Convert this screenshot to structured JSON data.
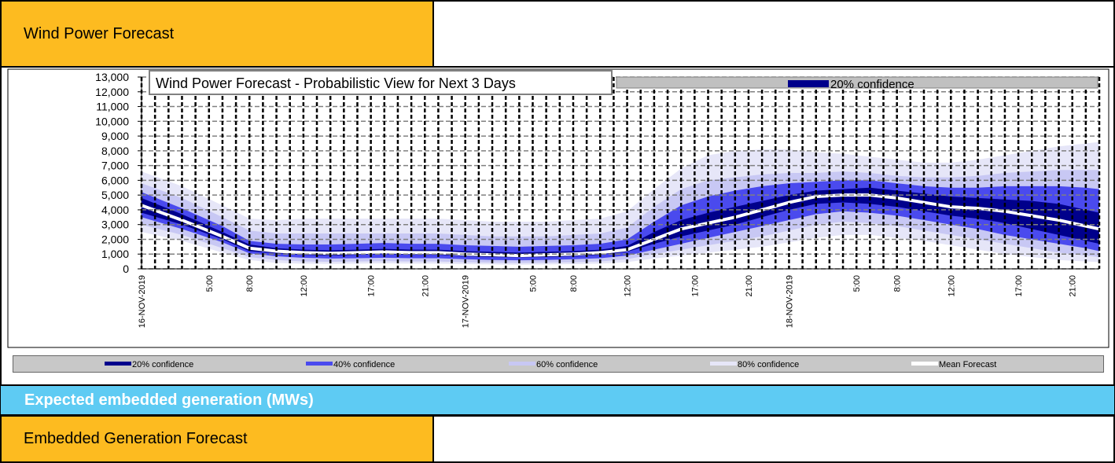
{
  "header": {
    "title": "Wind Power Forecast"
  },
  "section": {
    "title": "Expected embedded generation (MWs)"
  },
  "footer_header": {
    "title": "Embedded Generation Forecast"
  },
  "chart_data": {
    "type": "area",
    "title": "Wind Power Forecast - Probabilistic View for Next 3 Days",
    "xlabel": "",
    "ylabel": "",
    "ylim": [
      0,
      13000
    ],
    "yticks": [
      "0",
      "1,000",
      "2,000",
      "3,000",
      "4,000",
      "5,000",
      "6,000",
      "7,000",
      "8,000",
      "9,000",
      "10,000",
      "11,000",
      "12,000",
      "13,000"
    ],
    "x_tick_labels": [
      {
        "label": "16-NOV-2019",
        "hour": 0
      },
      {
        "label": "5:00",
        "hour": 5
      },
      {
        "label": "8:00",
        "hour": 8
      },
      {
        "label": "12:00",
        "hour": 12
      },
      {
        "label": "17:00",
        "hour": 17
      },
      {
        "label": "21:00",
        "hour": 21
      },
      {
        "label": "17-NOV-2019",
        "hour": 24
      },
      {
        "label": "5:00",
        "hour": 29
      },
      {
        "label": "8:00",
        "hour": 32
      },
      {
        "label": "12:00",
        "hour": 36
      },
      {
        "label": "17:00",
        "hour": 41
      },
      {
        "label": "21:00",
        "hour": 45
      },
      {
        "label": "18-NOV-2019",
        "hour": 48
      },
      {
        "label": "5:00",
        "hour": 53
      },
      {
        "label": "8:00",
        "hour": 56
      },
      {
        "label": "12:00",
        "hour": 60
      },
      {
        "label": "17:00",
        "hour": 65
      },
      {
        "label": "21:00",
        "hour": 69
      }
    ],
    "x_range_hours": [
      0,
      71
    ],
    "grid": true,
    "hours": [
      0,
      3,
      6,
      8,
      10,
      12,
      14,
      16,
      18,
      20,
      22,
      24,
      26,
      28,
      30,
      32,
      34,
      36,
      38,
      40,
      42,
      44,
      46,
      48,
      50,
      52,
      54,
      56,
      58,
      60,
      62,
      64,
      66,
      68,
      70,
      71
    ],
    "series": [
      {
        "name": "Mean Forecast",
        "color": "#ffffff",
        "values": [
          4300,
          3300,
          2200,
          1400,
          1200,
          1100,
          1050,
          1100,
          1150,
          1100,
          1100,
          1000,
          950,
          900,
          950,
          1000,
          1100,
          1300,
          2000,
          2700,
          3100,
          3500,
          4000,
          4500,
          4900,
          5000,
          5000,
          4800,
          4500,
          4200,
          4100,
          3900,
          3600,
          3300,
          2900,
          2700
        ]
      },
      {
        "name": "20% confidence",
        "color": "#00008b",
        "lower": [
          3800,
          3000,
          2000,
          1200,
          1050,
          950,
          900,
          950,
          1000,
          950,
          950,
          850,
          800,
          780,
          800,
          850,
          950,
          1150,
          1700,
          2200,
          2600,
          3000,
          3500,
          4000,
          4400,
          4500,
          4400,
          4200,
          3900,
          3600,
          3400,
          3100,
          2700,
          2300,
          1900,
          1700
        ],
        "upper": [
          4800,
          3700,
          2500,
          1650,
          1400,
          1300,
          1250,
          1300,
          1350,
          1300,
          1300,
          1200,
          1150,
          1100,
          1150,
          1200,
          1300,
          1550,
          2500,
          3300,
          3800,
          4200,
          4600,
          5000,
          5300,
          5400,
          5500,
          5300,
          5100,
          4900,
          4800,
          4700,
          4600,
          4400,
          4000,
          3800
        ]
      },
      {
        "name": "40% confidence",
        "color": "#4a4aee",
        "lower": [
          3500,
          2700,
          1800,
          1050,
          850,
          750,
          700,
          720,
          750,
          720,
          720,
          650,
          600,
          580,
          600,
          650,
          720,
          900,
          1300,
          1700,
          2100,
          2500,
          2900,
          3300,
          3700,
          3900,
          3800,
          3600,
          3300,
          3000,
          2700,
          2300,
          2000,
          1700,
          1400,
          1200
        ],
        "upper": [
          5200,
          4100,
          2900,
          1900,
          1700,
          1650,
          1650,
          1700,
          1750,
          1700,
          1700,
          1600,
          1550,
          1500,
          1550,
          1600,
          1700,
          2000,
          3200,
          4300,
          4900,
          5300,
          5600,
          5800,
          5900,
          6000,
          6000,
          5800,
          5600,
          5500,
          5500,
          5600,
          5600,
          5600,
          5500,
          5400
        ]
      },
      {
        "name": "60% confidence",
        "color": "#c8c8f4",
        "lower": [
          3000,
          2300,
          1400,
          800,
          600,
          500,
          480,
          500,
          520,
          500,
          500,
          450,
          420,
          400,
          420,
          450,
          500,
          650,
          1000,
          1300,
          1600,
          1900,
          2200,
          2600,
          3000,
          3200,
          3100,
          2900,
          2600,
          2300,
          2000,
          1700,
          1400,
          1100,
          900,
          800
        ],
        "upper": [
          5800,
          4800,
          3500,
          2600,
          2400,
          2400,
          2400,
          2400,
          2400,
          2400,
          2400,
          2300,
          2200,
          2200,
          2200,
          2300,
          2400,
          2800,
          4200,
          5400,
          6000,
          6200,
          6400,
          6500,
          6500,
          6600,
          6500,
          6300,
          6200,
          6200,
          6300,
          6500,
          6600,
          6700,
          6700,
          6700
        ]
      },
      {
        "name": "80% confidence",
        "color": "#e6e6f8",
        "lower": [
          2500,
          1900,
          1100,
          600,
          400,
          350,
          330,
          350,
          370,
          350,
          350,
          320,
          300,
          280,
          300,
          320,
          350,
          450,
          700,
          900,
          1100,
          1300,
          1500,
          1800,
          2100,
          2300,
          2300,
          2100,
          1900,
          1600,
          1300,
          1000,
          800,
          600,
          500,
          450
        ],
        "upper": [
          6600,
          5600,
          4300,
          3400,
          3300,
          3400,
          3400,
          3400,
          3400,
          3400,
          3400,
          3300,
          3200,
          3200,
          3200,
          3300,
          3400,
          3900,
          5400,
          6800,
          7700,
          8000,
          8100,
          8100,
          7900,
          7800,
          7600,
          7400,
          7200,
          7200,
          7400,
          7700,
          8000,
          8300,
          8500,
          8600
        ]
      }
    ],
    "inline_legend": {
      "label": "20% confidence"
    },
    "legend": [
      "20% confidence",
      "40% confidence",
      "60% confidence",
      "80% confidence",
      "Mean Forecast"
    ]
  }
}
